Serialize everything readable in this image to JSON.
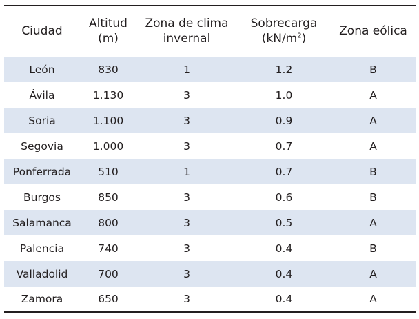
{
  "table": {
    "headers": {
      "city": "Ciudad",
      "altitude_line1": "Altitud",
      "altitude_line2": "(m)",
      "climate_line1": "Zona de clima",
      "climate_line2": "invernal",
      "load_line1": "Sobrecarga",
      "load_line2_prefix": "(kN/m",
      "load_line2_sup": "2",
      "load_line2_suffix": ")",
      "wind": "Zona eólica"
    },
    "rows": [
      {
        "city": "León",
        "altitude": "830",
        "climate_zone": "1",
        "load": "1.2",
        "wind_zone": "B"
      },
      {
        "city": "Ávila",
        "altitude": "1.130",
        "climate_zone": "3",
        "load": "1.0",
        "wind_zone": "A"
      },
      {
        "city": "Soria",
        "altitude": "1.100",
        "climate_zone": "3",
        "load": "0.9",
        "wind_zone": "A"
      },
      {
        "city": "Segovia",
        "altitude": "1.000",
        "climate_zone": "3",
        "load": "0.7",
        "wind_zone": "A"
      },
      {
        "city": "Ponferrada",
        "altitude": "510",
        "climate_zone": "1",
        "load": "0.7",
        "wind_zone": "B"
      },
      {
        "city": "Burgos",
        "altitude": "850",
        "climate_zone": "3",
        "load": "0.6",
        "wind_zone": "B"
      },
      {
        "city": "Salamanca",
        "altitude": "800",
        "climate_zone": "3",
        "load": "0.5",
        "wind_zone": "A"
      },
      {
        "city": "Palencia",
        "altitude": "740",
        "climate_zone": "3",
        "load": "0.4",
        "wind_zone": "B"
      },
      {
        "city": "Valladolid",
        "altitude": "700",
        "climate_zone": "3",
        "load": "0.4",
        "wind_zone": "A"
      },
      {
        "city": "Zamora",
        "altitude": "650",
        "climate_zone": "3",
        "load": "0.4",
        "wind_zone": "A"
      }
    ]
  },
  "colors": {
    "shaded_row": "#dde5f1",
    "text": "#231f20",
    "rule": "#231f20"
  }
}
